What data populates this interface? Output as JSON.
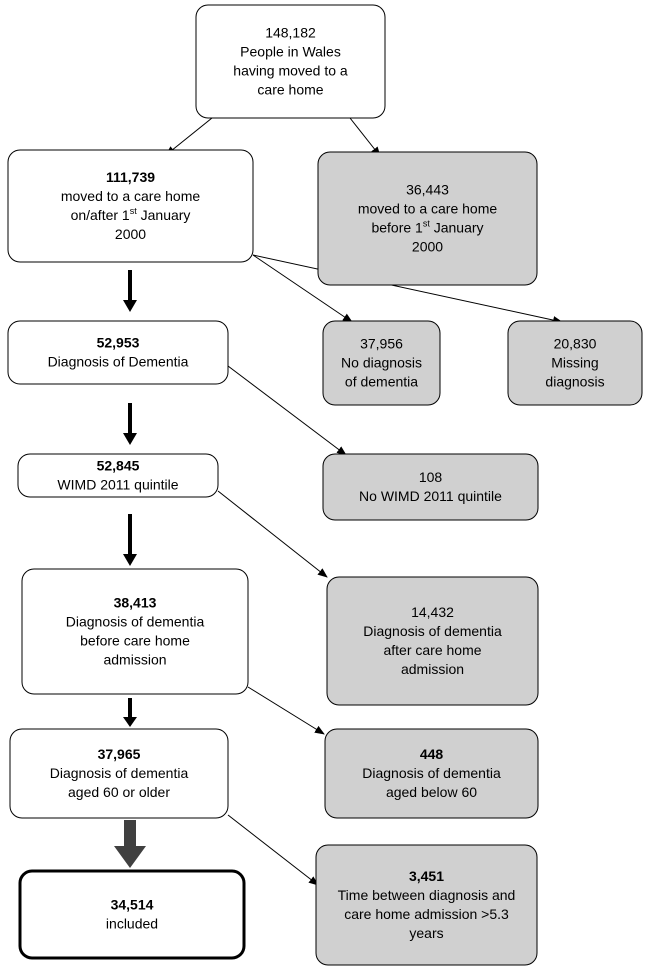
{
  "nodes": [
    {
      "count": "148,182",
      "bold": false,
      "shaded": false,
      "lines": [
        "People in Wales",
        "having moved to a",
        "care home"
      ]
    },
    {
      "count": "111,739",
      "bold": true,
      "shaded": false,
      "lines": [
        "moved to a care home",
        {
          "pre": "on/after 1",
          "sup": "st",
          "post": " January"
        },
        "2000"
      ]
    },
    {
      "count": "36,443",
      "bold": false,
      "shaded": true,
      "lines": [
        "moved to a care home",
        {
          "pre": "before 1",
          "sup": "st",
          "post": " January"
        },
        "2000"
      ]
    },
    {
      "count": "52,953",
      "bold": true,
      "shaded": false,
      "lines": [
        "Diagnosis of Dementia"
      ]
    },
    {
      "count": "37,956",
      "bold": false,
      "shaded": true,
      "lines": [
        "No diagnosis",
        "of dementia"
      ]
    },
    {
      "count": "20,830",
      "bold": false,
      "shaded": true,
      "lines": [
        "Missing",
        "diagnosis"
      ]
    },
    {
      "count": "52,845",
      "bold": true,
      "shaded": false,
      "lines": [
        "WIMD 2011 quintile"
      ]
    },
    {
      "count": "108",
      "bold": false,
      "shaded": true,
      "lines": [
        "No WIMD 2011 quintile"
      ]
    },
    {
      "count": "38,413",
      "bold": true,
      "shaded": false,
      "lines": [
        "Diagnosis of dementia",
        "before care home",
        "admission"
      ]
    },
    {
      "count": "14,432",
      "bold": false,
      "shaded": true,
      "lines": [
        "Diagnosis of dementia",
        "after care home",
        "admission"
      ]
    },
    {
      "count": "37,965",
      "bold": true,
      "shaded": false,
      "lines": [
        "Diagnosis of dementia",
        "aged 60 or older"
      ]
    },
    {
      "count": "448",
      "bold": true,
      "shaded": true,
      "lines": [
        "Diagnosis of dementia",
        "aged below 60"
      ]
    },
    {
      "count": "34,514",
      "bold": true,
      "shaded": false,
      "final": true,
      "lines": [
        "included"
      ]
    },
    {
      "count": "3,451",
      "bold": true,
      "shaded": true,
      "lines": [
        "Time between diagnosis and",
        "care home admission >5.3",
        "years"
      ]
    }
  ]
}
